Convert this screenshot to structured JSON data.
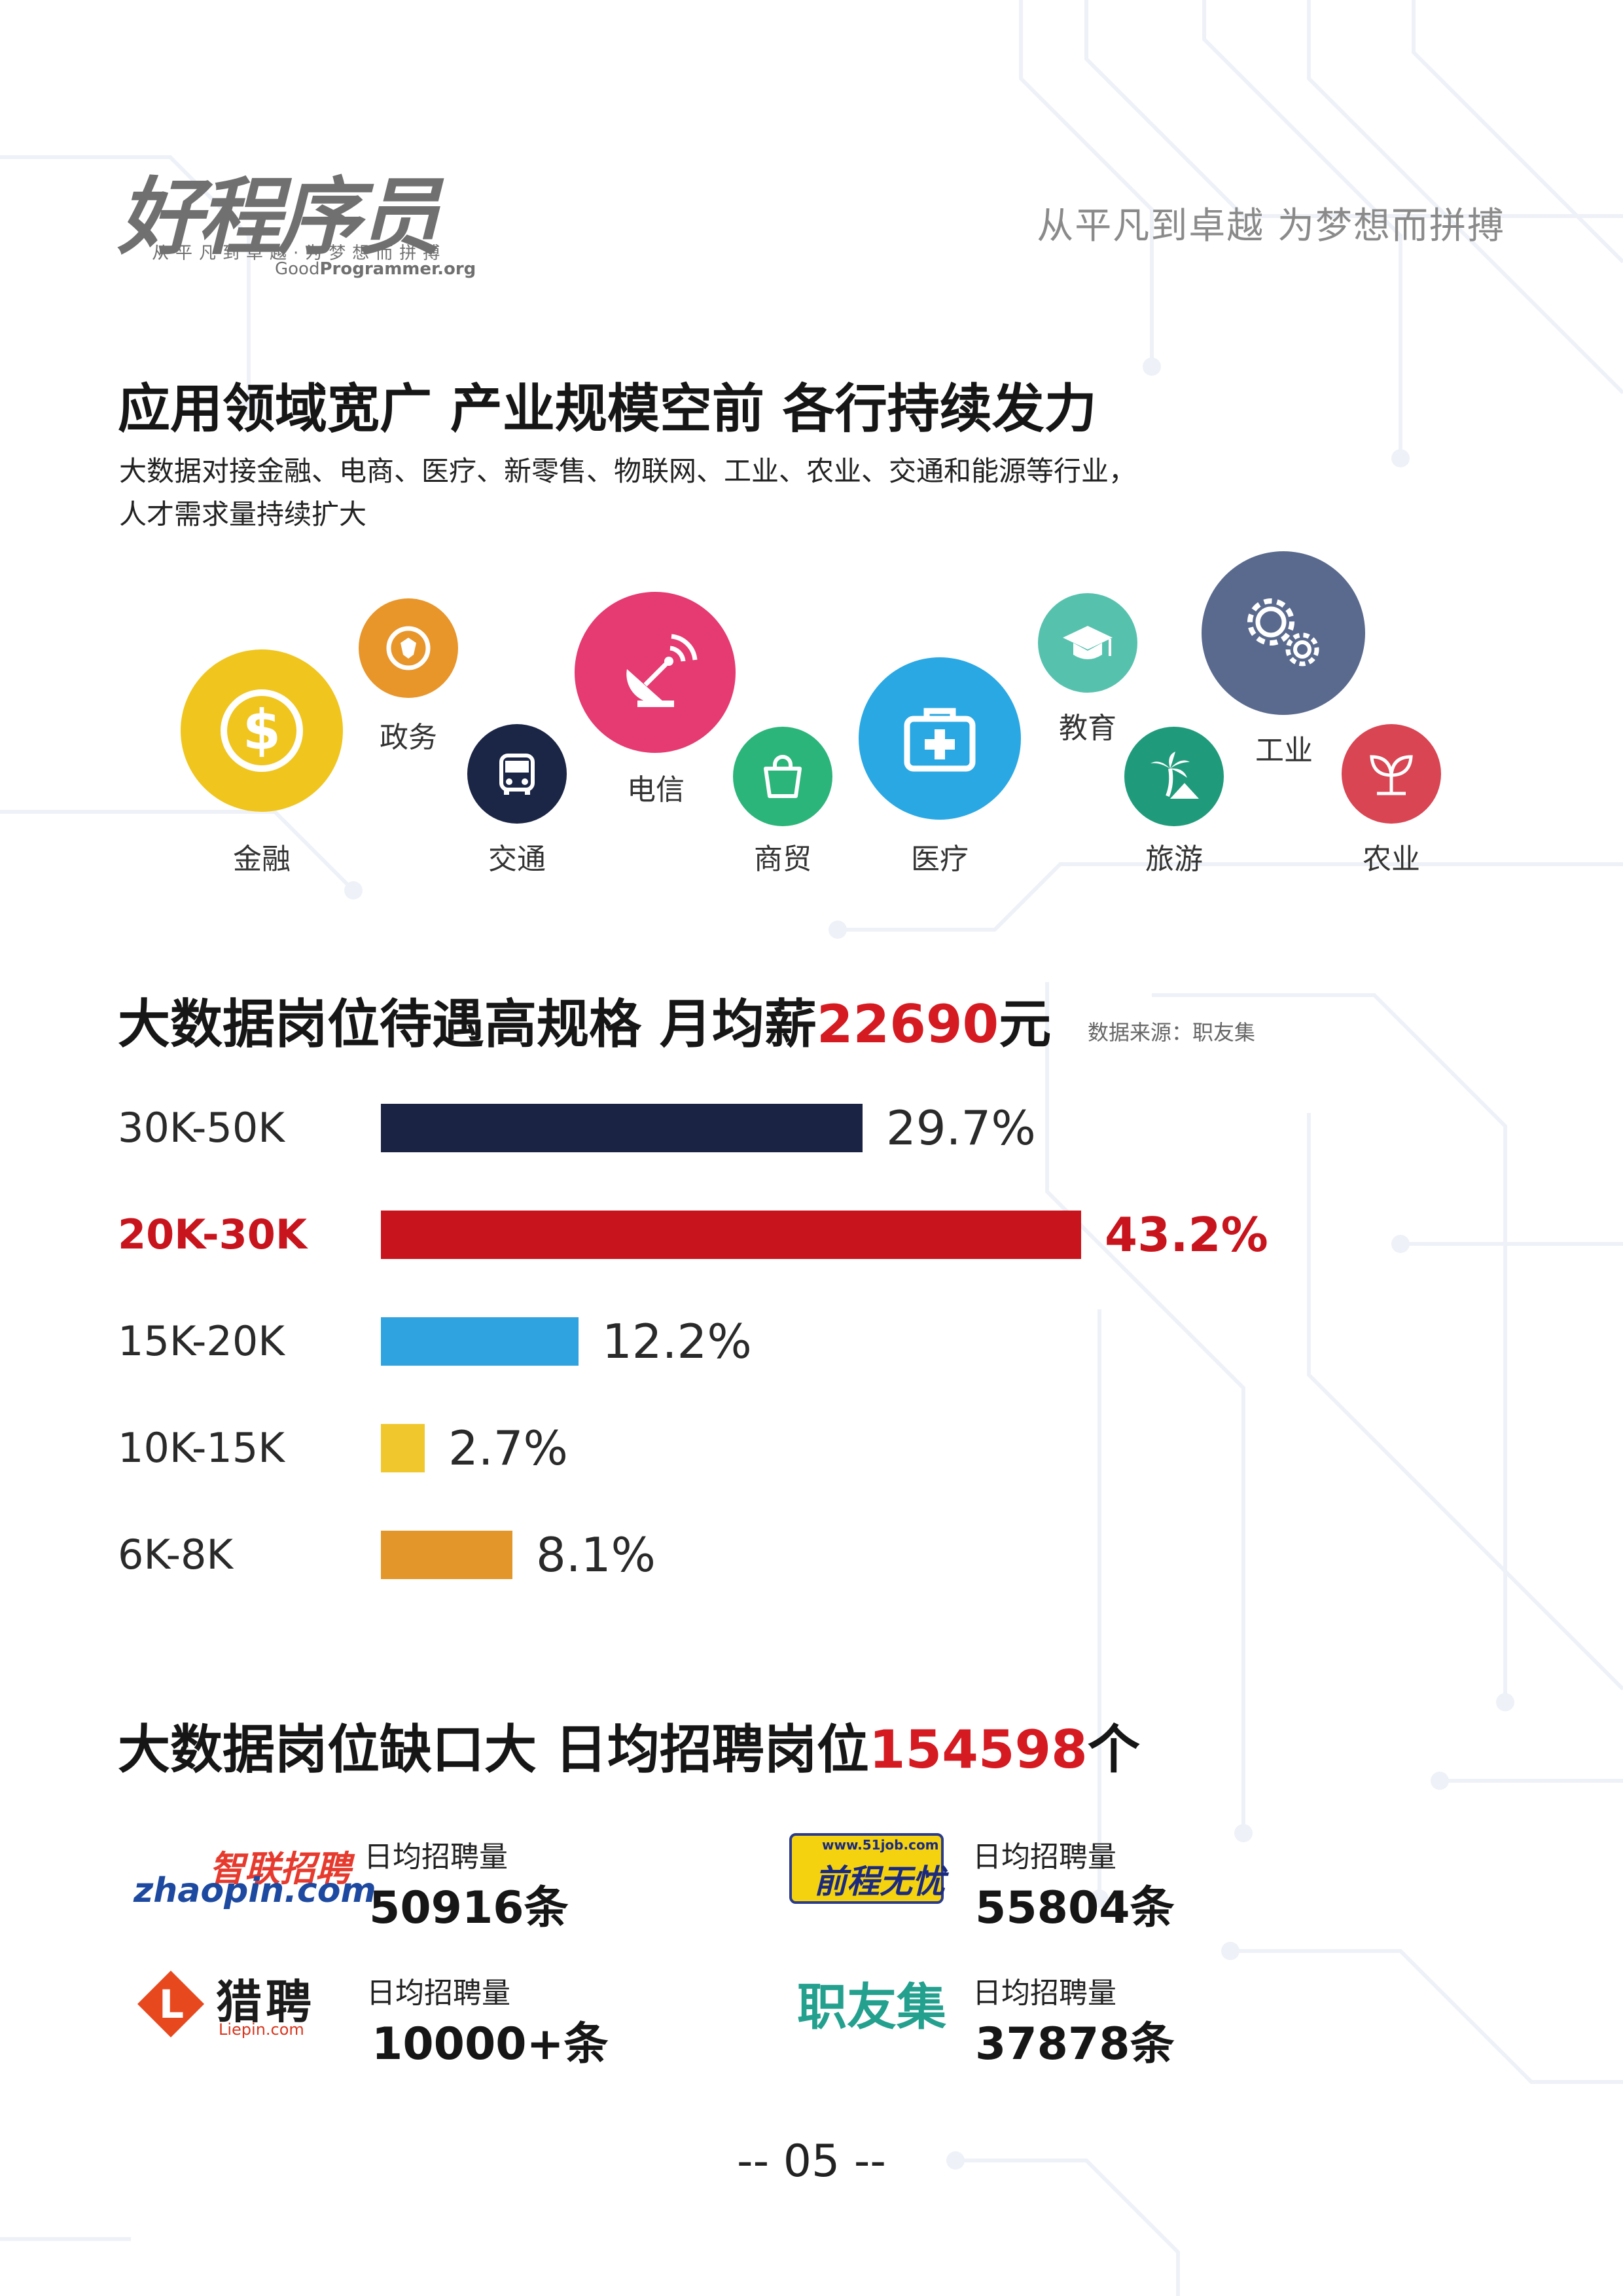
{
  "header": {
    "logo": "好程序员",
    "logo_tagline": "从平凡到卓越·为梦想而拼搏",
    "logo_url_plain": "Good",
    "logo_url_bold": "Programmer.org",
    "slogan": "从平凡到卓越 为梦想而拼搏"
  },
  "section1": {
    "title": "应用领域宽广 产业规模空前 各行持续发力",
    "desc_line1": "大数据对接金融、电商、医疗、新零售、物联网、工业、农业、交通和能源等行业，",
    "desc_line2": "人才需求量持续扩大",
    "industries": [
      {
        "label": "金融",
        "icon": "dollar-icon",
        "color": "#f0c51e"
      },
      {
        "label": "政务",
        "icon": "government-badge-icon",
        "color": "#e8952a"
      },
      {
        "label": "交通",
        "icon": "bus-icon",
        "color": "#1b2545"
      },
      {
        "label": "电信",
        "icon": "satellite-dish-icon",
        "color": "#e63a72"
      },
      {
        "label": "商贸",
        "icon": "shopping-bag-icon",
        "color": "#2bb57a"
      },
      {
        "label": "医疗",
        "icon": "medical-kit-icon",
        "color": "#2aa8e3"
      },
      {
        "label": "教育",
        "icon": "graduation-cap-icon",
        "color": "#56c2ae"
      },
      {
        "label": "旅游",
        "icon": "palm-tree-icon",
        "color": "#1f9b7b"
      },
      {
        "label": "工业",
        "icon": "gears-icon",
        "color": "#5a6a8e"
      },
      {
        "label": "农业",
        "icon": "sprout-icon",
        "color": "#d94552"
      }
    ]
  },
  "section2": {
    "title_prefix": "大数据岗位待遇高规格  月均薪",
    "title_highlight": "22690",
    "title_suffix": "元",
    "source": "数据来源：职友集"
  },
  "chart_data": {
    "type": "bar",
    "orientation": "horizontal",
    "categories": [
      "30K-50K",
      "20K-30K",
      "15K-20K",
      "10K-15K",
      "6K-8K"
    ],
    "values": [
      29.7,
      43.2,
      12.2,
      2.7,
      8.1
    ],
    "labels": [
      "29.7%",
      "43.2%",
      "12.2%",
      "2.7%",
      "8.1%"
    ],
    "colors": [
      "#1a2344",
      "#c8141c",
      "#2ea3e0",
      "#f0c82e",
      "#e3972a"
    ],
    "highlight_index": 1,
    "unit": "%"
  },
  "section3": {
    "title_prefix": "大数据岗位缺口大  日均招聘岗位",
    "title_highlight": "154598",
    "title_suffix": "个",
    "sites": [
      {
        "logo_top": "智联招聘",
        "logo_bottom": "zhaopin.com",
        "label": "日均招聘量",
        "value": "50916条"
      },
      {
        "logo_url": "www.51job.com",
        "logo_name": "前程无忧",
        "label": "日均招聘量",
        "value": "55804条"
      },
      {
        "logo_name": "猎聘",
        "logo_url": "Liepin.com",
        "logo_letter": "L",
        "label": "日均招聘量",
        "value": "10000+条"
      },
      {
        "logo_name": "职友集",
        "label": "日均招聘量",
        "value": "37878条"
      }
    ]
  },
  "footer": {
    "page": "-- 05 --"
  }
}
